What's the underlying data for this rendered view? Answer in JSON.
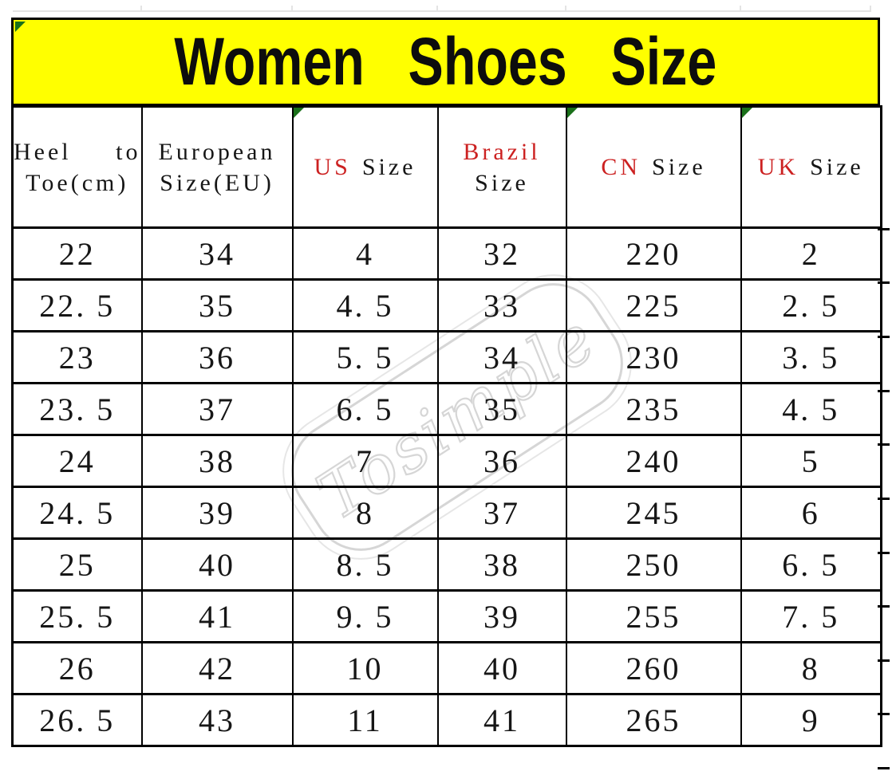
{
  "banner": {
    "title": "Women Shoes Size",
    "bg_color": "#ffff00",
    "text_color": "#0d0d0d"
  },
  "watermark": {
    "text": "Tosimple",
    "color": "#d6d6d6"
  },
  "colors": {
    "accent_red": "#cc2121",
    "corner_green": "#1a701a",
    "grid_black": "#000000"
  },
  "table": {
    "column_ids": [
      "heel_to_toe_cm",
      "eu_size",
      "us_size",
      "brazil_size",
      "cn_size",
      "uk_size"
    ],
    "headers": [
      {
        "label": "Heel to Toe(cm)",
        "line1_word1": "Heel",
        "line1_word2": "to",
        "line2": "Toe(cm)"
      },
      {
        "label": "European Size(EU)",
        "line1": "European",
        "line2": "Size(EU)"
      },
      {
        "label": "US Size",
        "red_part": "US",
        "black_part": "Size"
      },
      {
        "label": "Brazil Size",
        "red_part": "Brazil",
        "black_part": "Size"
      },
      {
        "label": "CN Size",
        "red_part": "CN",
        "black_part": "Size"
      },
      {
        "label": "UK Size",
        "red_part": "UK",
        "black_part": "Size"
      }
    ],
    "rows": [
      [
        "22",
        "34",
        "4",
        "32",
        "220",
        "2"
      ],
      [
        "22. 5",
        "35",
        "4. 5",
        "33",
        "225",
        "2. 5"
      ],
      [
        "23",
        "36",
        "5. 5",
        "34",
        "230",
        "3. 5"
      ],
      [
        "23. 5",
        "37",
        "6. 5",
        "35",
        "235",
        "4. 5"
      ],
      [
        "24",
        "38",
        "7",
        "36",
        "240",
        "5"
      ],
      [
        "24. 5",
        "39",
        "8",
        "37",
        "245",
        "6"
      ],
      [
        "25",
        "40",
        "8. 5",
        "38",
        "250",
        "6. 5"
      ],
      [
        "25. 5",
        "41",
        "9. 5",
        "39",
        "255",
        "7. 5"
      ],
      [
        "26",
        "42",
        "10",
        "40",
        "260",
        "8"
      ],
      [
        "26. 5",
        "43",
        "11",
        "41",
        "265",
        "9"
      ]
    ]
  },
  "chart_data": {
    "type": "table",
    "title": "Women Shoes Size",
    "columns": [
      "Heel to Toe(cm)",
      "European Size(EU)",
      "US Size",
      "Brazil Size",
      "CN Size",
      "UK Size"
    ],
    "rows": [
      [
        22,
        34,
        4,
        32,
        220,
        2
      ],
      [
        22.5,
        35,
        4.5,
        33,
        225,
        2.5
      ],
      [
        23,
        36,
        5.5,
        34,
        230,
        3.5
      ],
      [
        23.5,
        37,
        6.5,
        35,
        235,
        4.5
      ],
      [
        24,
        38,
        7,
        36,
        240,
        5
      ],
      [
        24.5,
        39,
        8,
        37,
        245,
        6
      ],
      [
        25,
        40,
        8.5,
        38,
        250,
        6.5
      ],
      [
        25.5,
        41,
        9.5,
        39,
        255,
        7.5
      ],
      [
        26,
        42,
        10,
        40,
        260,
        8
      ],
      [
        26.5,
        43,
        11,
        41,
        265,
        9
      ]
    ]
  }
}
